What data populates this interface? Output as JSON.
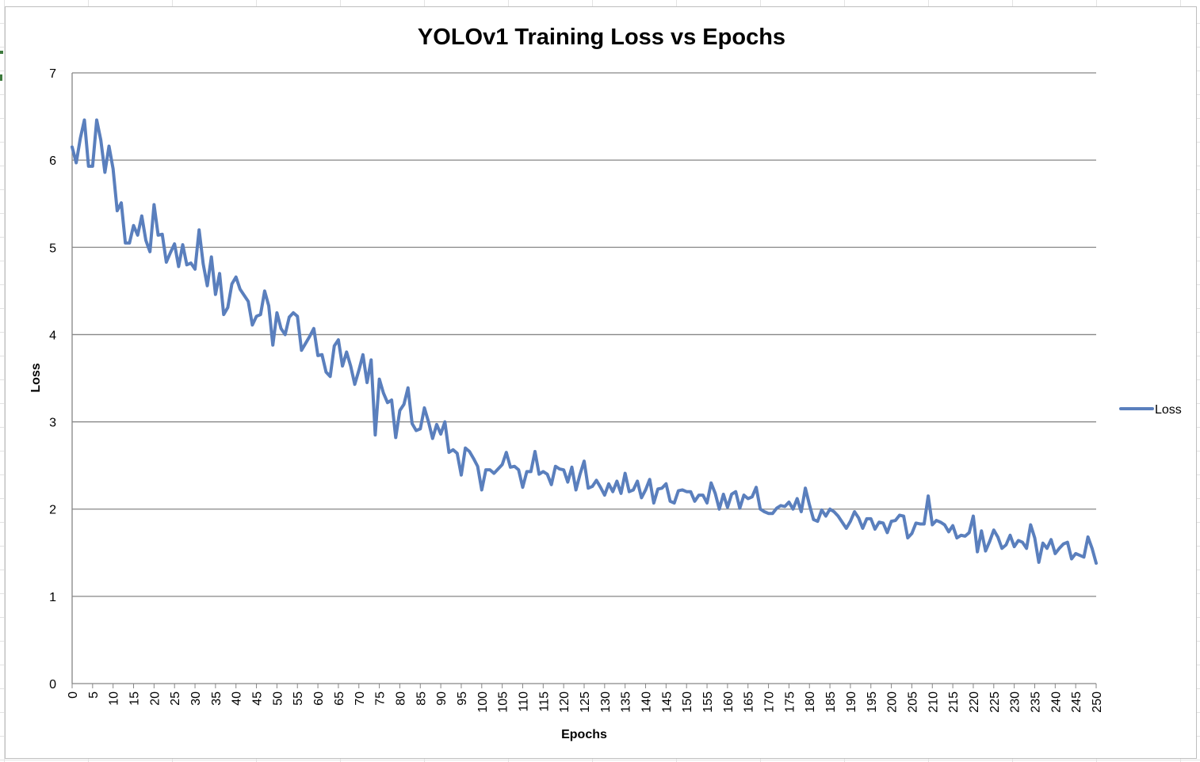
{
  "chart_data": {
    "type": "line",
    "title": "YOLOv1 Training Loss vs Epochs",
    "xlabel": "Epochs",
    "ylabel": "Loss",
    "ylim": [
      0,
      7
    ],
    "xlim": [
      0,
      250
    ],
    "y_ticks": [
      "0",
      "1",
      "2",
      "3",
      "4",
      "5",
      "6",
      "7"
    ],
    "x_ticks": [
      "0",
      "5",
      "10",
      "15",
      "20",
      "25",
      "30",
      "35",
      "40",
      "45",
      "50",
      "55",
      "60",
      "65",
      "70",
      "75",
      "80",
      "85",
      "90",
      "95",
      "100",
      "105",
      "110",
      "115",
      "120",
      "125",
      "130",
      "135",
      "140",
      "145",
      "150",
      "155",
      "160",
      "165",
      "170",
      "175",
      "180",
      "185",
      "190",
      "195",
      "200",
      "205",
      "210",
      "215",
      "220",
      "225",
      "230",
      "235",
      "240",
      "245",
      "250"
    ],
    "grid": "horizontal major gridlines",
    "legend": "right",
    "colors": {
      "series": "#5a7fbd",
      "grid": "#868686",
      "axis": "#868686"
    },
    "series": [
      {
        "name": "Loss",
        "x": [
          0,
          1,
          2,
          3,
          4,
          5,
          6,
          7,
          8,
          9,
          10,
          11,
          12,
          13,
          14,
          15,
          16,
          17,
          18,
          19,
          20,
          21,
          22,
          23,
          24,
          25,
          26,
          27,
          28,
          29,
          30,
          31,
          32,
          33,
          34,
          35,
          36,
          37,
          38,
          39,
          40,
          41,
          42,
          43,
          44,
          45,
          46,
          47,
          48,
          49,
          50,
          51,
          52,
          53,
          54,
          55,
          56,
          57,
          58,
          59,
          60,
          61,
          62,
          63,
          64,
          65,
          66,
          67,
          68,
          69,
          70,
          71,
          72,
          73,
          74,
          75,
          76,
          77,
          78,
          79,
          80,
          81,
          82,
          83,
          84,
          85,
          86,
          87,
          88,
          89,
          90,
          91,
          92,
          93,
          94,
          95,
          96,
          97,
          98,
          99,
          100,
          101,
          102,
          103,
          104,
          105,
          106,
          107,
          108,
          109,
          110,
          111,
          112,
          113,
          114,
          115,
          116,
          117,
          118,
          119,
          120,
          121,
          122,
          123,
          124,
          125,
          126,
          127,
          128,
          129,
          130,
          131,
          132,
          133,
          134,
          135,
          136,
          137,
          138,
          139,
          140,
          141,
          142,
          143,
          144,
          145,
          146,
          147,
          148,
          149,
          150,
          151,
          152,
          153,
          154,
          155,
          156,
          157,
          158,
          159,
          160,
          161,
          162,
          163,
          164,
          165,
          166,
          167,
          168,
          169,
          170,
          171,
          172,
          173,
          174,
          175,
          176,
          177,
          178,
          179,
          180,
          181,
          182,
          183,
          184,
          185,
          186,
          187,
          188,
          189,
          190,
          191,
          192,
          193,
          194,
          195,
          196,
          197,
          198,
          199,
          200,
          201,
          202,
          203,
          204,
          205,
          206,
          207,
          208,
          209,
          210,
          211,
          212,
          213,
          214,
          215,
          216,
          217,
          218,
          219,
          220,
          221,
          222,
          223,
          224,
          225,
          226,
          227,
          228,
          229,
          230,
          231,
          232,
          233,
          234,
          235,
          236,
          237,
          238,
          239,
          240,
          241,
          242,
          243,
          244,
          245,
          246,
          247,
          248,
          249,
          250
        ],
        "values": [
          6.15,
          5.97,
          6.25,
          6.46,
          5.93,
          5.93,
          6.46,
          6.23,
          5.86,
          6.16,
          5.9,
          5.42,
          5.51,
          5.05,
          5.05,
          5.25,
          5.14,
          5.36,
          5.08,
          4.95,
          5.49,
          5.14,
          5.15,
          4.83,
          4.94,
          5.04,
          4.78,
          5.03,
          4.8,
          4.82,
          4.75,
          5.2,
          4.81,
          4.56,
          4.89,
          4.46,
          4.7,
          4.23,
          4.31,
          4.58,
          4.66,
          4.52,
          4.45,
          4.38,
          4.11,
          4.21,
          4.23,
          4.5,
          4.33,
          3.88,
          4.25,
          4.07,
          4.0,
          4.2,
          4.25,
          4.21,
          3.82,
          3.9,
          3.98,
          4.07,
          3.76,
          3.77,
          3.57,
          3.52,
          3.87,
          3.94,
          3.64,
          3.8,
          3.64,
          3.43,
          3.59,
          3.77,
          3.45,
          3.71,
          2.85,
          3.49,
          3.33,
          3.22,
          3.25,
          2.82,
          3.13,
          3.2,
          3.39,
          2.98,
          2.9,
          2.92,
          3.16,
          3.0,
          2.81,
          2.97,
          2.86,
          3.0,
          2.65,
          2.68,
          2.64,
          2.39,
          2.7,
          2.66,
          2.58,
          2.49,
          2.22,
          2.45,
          2.45,
          2.41,
          2.46,
          2.51,
          2.65,
          2.48,
          2.49,
          2.45,
          2.25,
          2.43,
          2.43,
          2.66,
          2.4,
          2.43,
          2.4,
          2.28,
          2.49,
          2.46,
          2.45,
          2.31,
          2.48,
          2.22,
          2.4,
          2.55,
          2.24,
          2.26,
          2.33,
          2.25,
          2.16,
          2.29,
          2.2,
          2.32,
          2.18,
          2.41,
          2.2,
          2.22,
          2.32,
          2.13,
          2.22,
          2.34,
          2.07,
          2.23,
          2.24,
          2.29,
          2.09,
          2.07,
          2.21,
          2.22,
          2.2,
          2.2,
          2.09,
          2.16,
          2.16,
          2.07,
          2.3,
          2.18,
          2.0,
          2.17,
          2.02,
          2.17,
          2.2,
          2.01,
          2.16,
          2.12,
          2.14,
          2.25,
          2.0,
          1.97,
          1.95,
          1.95,
          2.01,
          2.04,
          2.03,
          2.08,
          2.0,
          2.12,
          1.97,
          2.24,
          2.05,
          1.88,
          1.86,
          1.99,
          1.92,
          2.0,
          1.97,
          1.92,
          1.85,
          1.78,
          1.86,
          1.97,
          1.9,
          1.78,
          1.89,
          1.89,
          1.77,
          1.85,
          1.84,
          1.73,
          1.86,
          1.87,
          1.93,
          1.92,
          1.67,
          1.72,
          1.84,
          1.83,
          1.83,
          2.15,
          1.82,
          1.87,
          1.85,
          1.82,
          1.74,
          1.81,
          1.67,
          1.7,
          1.69,
          1.73,
          1.92,
          1.51,
          1.75,
          1.52,
          1.63,
          1.76,
          1.68,
          1.55,
          1.59,
          1.7,
          1.57,
          1.64,
          1.62,
          1.55,
          1.82,
          1.67,
          1.39,
          1.61,
          1.55,
          1.65,
          1.49,
          1.55,
          1.6,
          1.62,
          1.43,
          1.49,
          1.47,
          1.45,
          1.68,
          1.55,
          1.38
        ]
      }
    ]
  }
}
